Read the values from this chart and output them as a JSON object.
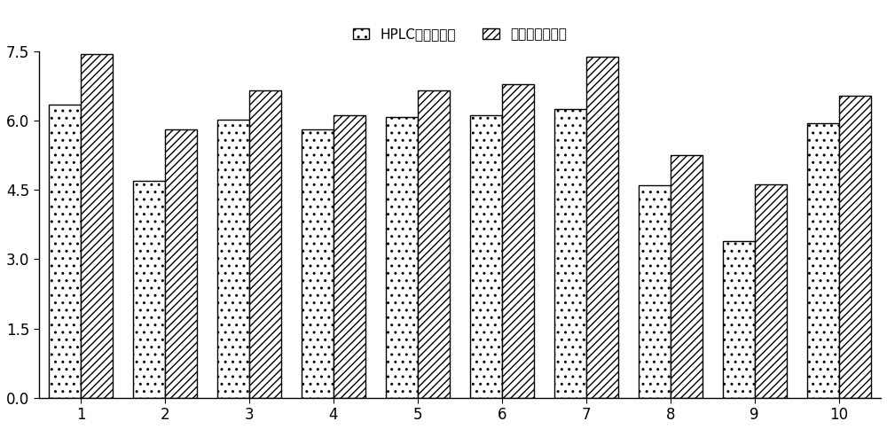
{
  "categories": [
    1,
    2,
    3,
    4,
    5,
    6,
    7,
    8,
    9,
    10
  ],
  "hplc_values": [
    6.35,
    4.7,
    6.02,
    5.82,
    6.08,
    6.12,
    6.25,
    4.6,
    3.4,
    5.95
  ],
  "bio_values": [
    7.45,
    5.82,
    6.65,
    6.12,
    6.65,
    6.8,
    7.38,
    5.25,
    4.62,
    6.55
  ],
  "ylim": [
    0,
    7.5
  ],
  "yticks": [
    0.0,
    1.5,
    3.0,
    4.5,
    6.0,
    7.5
  ],
  "legend_labels": [
    "HPLC检测效价値",
    "生物效价检测値"
  ],
  "bar_width": 0.38,
  "hplc_hatch": "..",
  "bio_hatch": "////",
  "facecolor": "white",
  "edgecolor": "black",
  "background_color": "#ffffff",
  "tick_fontsize": 12,
  "legend_fontsize": 11
}
